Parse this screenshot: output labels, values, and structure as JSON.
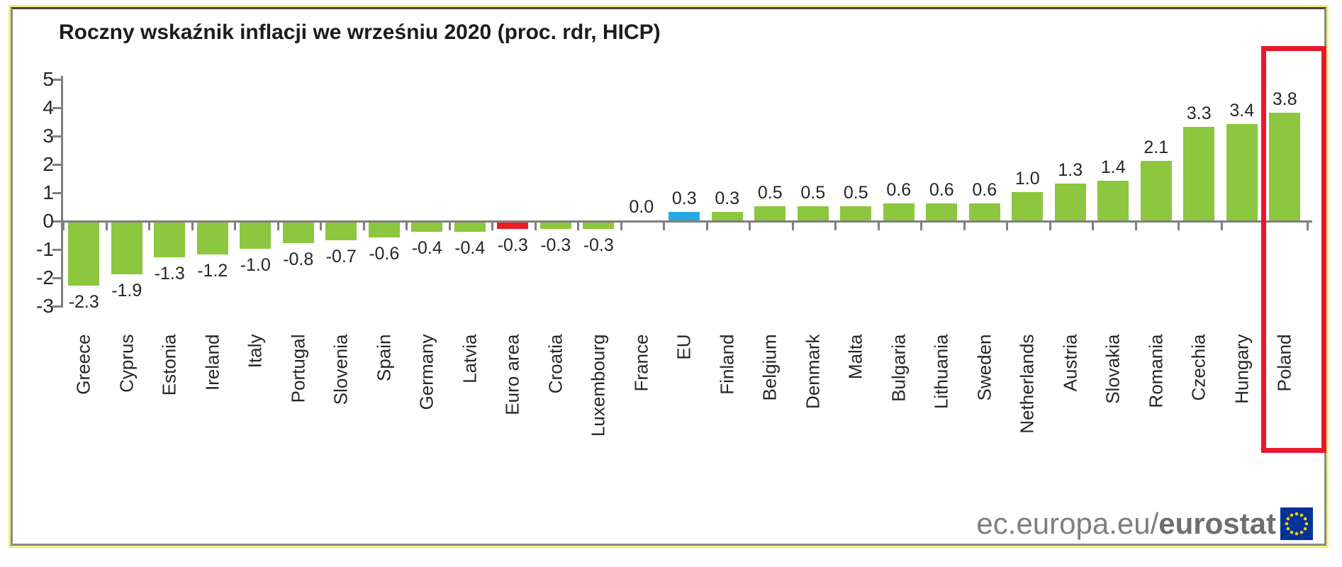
{
  "title": "Roczny wskaźnik inflacji we wrześniu 2020 (proc. rdr, HICP)",
  "footer": {
    "url_regular": "ec.europa.eu/",
    "url_bold": "eurostat",
    "eu_flag_icon": "eu-flag-icon"
  },
  "colors": {
    "bar_green": "#8dc63f",
    "bar_red": "#ed1c24",
    "bar_blue": "#29a9e1",
    "axis_gray": "#7f7f7f",
    "highlight_red": "#e8192c",
    "label_dark": "#262626",
    "footer_gray": "#7f7f7f",
    "eu_flag_blue": "#003399",
    "eu_flag_star_yellow": "#ffcc00"
  },
  "chart_data": {
    "type": "bar",
    "title": "Roczny wskaźnik inflacji we wrześniu 2020 (proc. rdr, HICP)",
    "xlabel": "",
    "ylabel": "",
    "ylim": [
      -3,
      5
    ],
    "yticks": [
      5,
      4,
      3,
      2,
      1,
      0,
      -1,
      -2,
      -3
    ],
    "grid": false,
    "legend": "none",
    "value_labels_shown": true,
    "categories": [
      "Greece",
      "Cyprus",
      "Estonia",
      "Ireland",
      "Italy",
      "Portugal",
      "Slovenia",
      "Spain",
      "Germany",
      "Latvia",
      "Euro area",
      "Croatia",
      "Luxembourg",
      "France",
      "EU",
      "Finland",
      "Belgium",
      "Denmark",
      "Malta",
      "Bulgaria",
      "Lithuania",
      "Sweden",
      "Netherlands",
      "Austria",
      "Slovakia",
      "Romania",
      "Czechia",
      "Hungary",
      "Poland"
    ],
    "values": [
      -2.3,
      -1.9,
      -1.3,
      -1.2,
      -1.0,
      -0.8,
      -0.7,
      -0.6,
      -0.4,
      -0.4,
      -0.3,
      -0.3,
      -0.3,
      0.0,
      0.3,
      0.3,
      0.5,
      0.5,
      0.5,
      0.6,
      0.6,
      0.6,
      1.0,
      1.3,
      1.4,
      2.1,
      3.3,
      3.4,
      3.8
    ],
    "special_bar_colors": {
      "Euro area": "red",
      "EU": "blue"
    },
    "highlighted_category": "Poland"
  }
}
